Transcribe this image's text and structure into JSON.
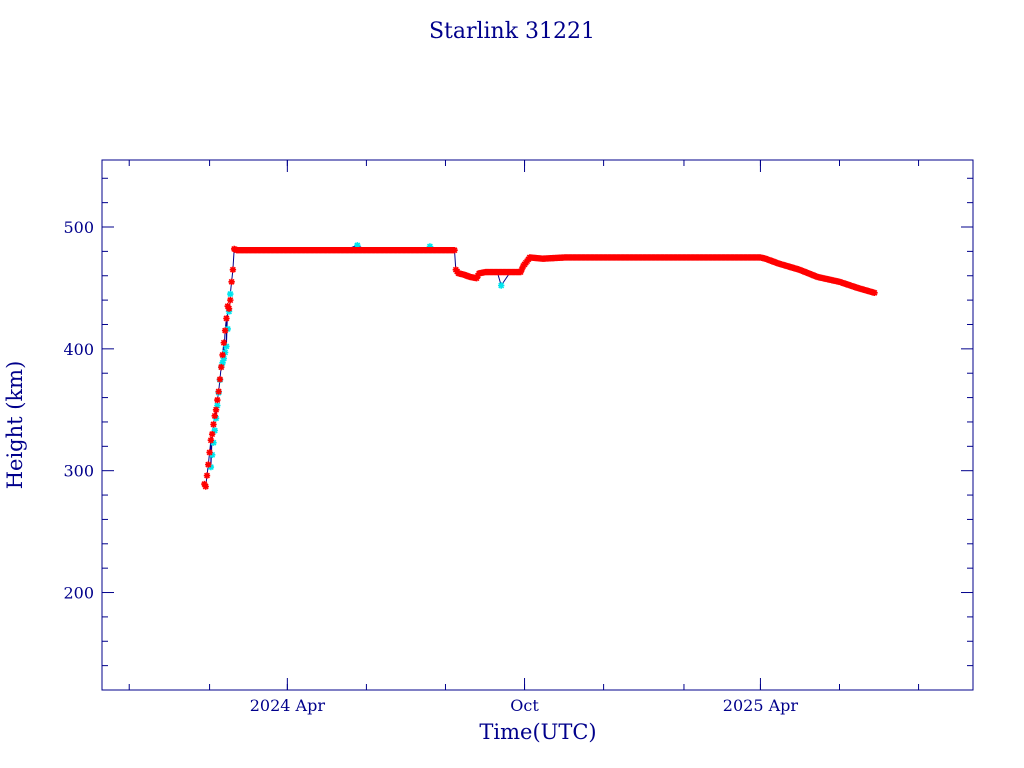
{
  "chart_data": {
    "type": "scatter",
    "title": "Starlink 31221",
    "xlabel": "Time(UTC)",
    "ylabel": "Height (km)",
    "x_tick_labels": [
      {
        "date": "2024-04-01",
        "label": "2024 Apr"
      },
      {
        "date": "2024-10-01",
        "label": "Oct"
      },
      {
        "date": "2025-04-01",
        "label": "2025 Apr"
      }
    ],
    "x_minor_ticks": [
      "2023-12-01",
      "2024-02-01",
      "2024-04-01",
      "2024-06-01",
      "2024-08-01",
      "2024-10-01",
      "2024-12-01",
      "2025-02-01",
      "2025-04-01",
      "2025-06-01",
      "2025-08-01"
    ],
    "xlim": [
      "2023-11-10",
      "2025-09-12"
    ],
    "ylim": [
      120,
      555
    ],
    "y_ticks": [
      200,
      300,
      400,
      500
    ],
    "y_minor_step": 20,
    "grid": false,
    "colors": {
      "axes": "#00008b",
      "text": "#00008b",
      "line": "#00008b",
      "series_red": "#ff0000",
      "series_cyan": "#00e5ee"
    },
    "series": [
      {
        "color": "red",
        "x": [
          "2024-01-28",
          "2024-01-29",
          "2024-01-31",
          "2024-02-01",
          "2024-02-02",
          "2024-02-03",
          "2024-02-04",
          "2024-02-05",
          "2024-02-06",
          "2024-02-07",
          "2024-02-08",
          "2024-02-09",
          "2024-02-10",
          "2024-02-11",
          "2024-02-12",
          "2024-02-13",
          "2024-02-14",
          "2024-02-15",
          "2024-02-16",
          "2024-02-17",
          "2024-02-18",
          "2024-02-19",
          "2024-02-20",
          "2024-02-22",
          "2024-03-01",
          "2024-03-15",
          "2024-04-01",
          "2024-04-15",
          "2024-05-01",
          "2024-05-15",
          "2024-06-01",
          "2024-06-15",
          "2024-07-01",
          "2024-07-15",
          "2024-08-01",
          "2024-08-08",
          "2024-08-09",
          "2024-08-11",
          "2024-08-15",
          "2024-08-20",
          "2024-08-25",
          "2024-08-27",
          "2024-09-01",
          "2024-09-10",
          "2024-09-20",
          "2024-09-28",
          "2024-09-30",
          "2024-10-03",
          "2024-10-05",
          "2024-10-15",
          "2024-11-01",
          "2024-12-01",
          "2025-01-01",
          "2025-02-01",
          "2025-03-01",
          "2025-04-01",
          "2025-04-05",
          "2025-04-15",
          "2025-05-01",
          "2025-05-15",
          "2025-06-01",
          "2025-06-15",
          "2025-06-28"
        ],
        "y": [
          289,
          287,
          305,
          315,
          325,
          330,
          338,
          345,
          350,
          358,
          365,
          375,
          385,
          395,
          405,
          415,
          425,
          435,
          433,
          440,
          455,
          465,
          482,
          481,
          481,
          481,
          481,
          481,
          481,
          481,
          481,
          481,
          481,
          481,
          481,
          481,
          465,
          462,
          461,
          459,
          458,
          462,
          463,
          463,
          463,
          463,
          468,
          472,
          475,
          474,
          475,
          475,
          475,
          475,
          475,
          475,
          474,
          470,
          465,
          459,
          455,
          450,
          446
        ]
      },
      {
        "color": "cyan",
        "x": [
          "2024-02-02",
          "2024-02-06",
          "2024-02-10",
          "2024-02-12",
          "2024-02-14",
          "2024-02-17",
          "2024-05-25",
          "2024-07-20",
          "2024-09-13"
        ],
        "y": [
          303,
          343,
          385,
          392,
          402,
          445,
          485,
          484,
          452
        ]
      }
    ]
  }
}
